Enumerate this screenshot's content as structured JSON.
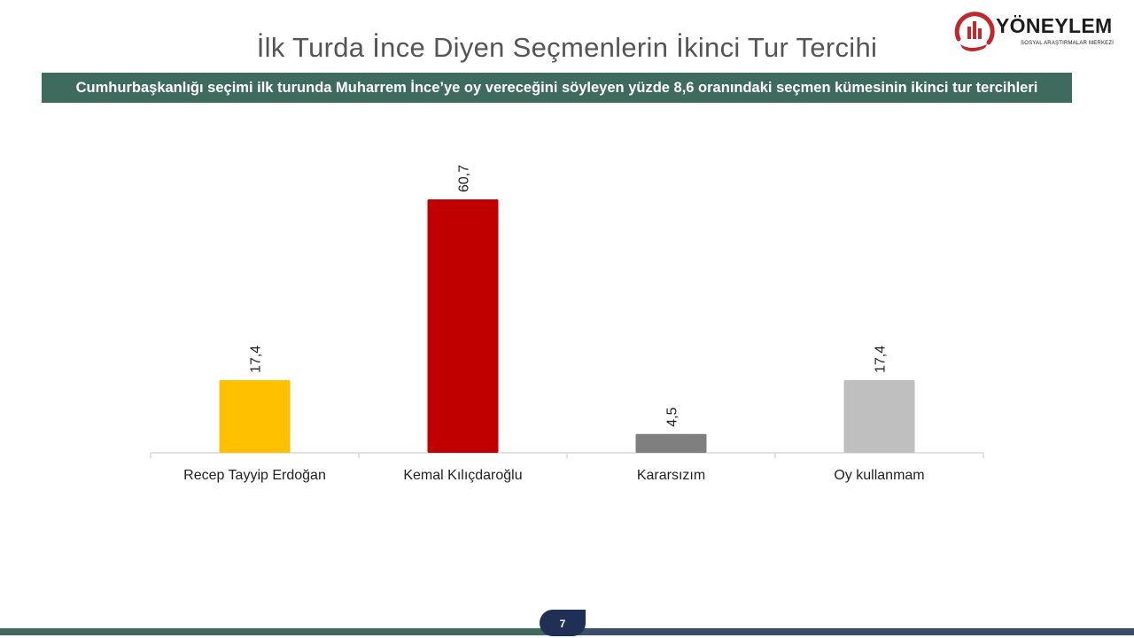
{
  "header": {
    "title": "İlk Turda İnce Diyen Seçmenlerin İkinci Tur Tercihi",
    "subtitle": "Cumhurbaşkanlığı seçimi ilk turunda Muharrem İnce’ye oy vereceğini söyleyen yüzde 8,6 oranındaki seçmen kümesinin ikinci tur tercihleri"
  },
  "logo": {
    "name": "YÖNEYLEM",
    "tagline": "SOSYAL ARAŞTIRMALAR MERKEZİ",
    "accent_color": "#c0282d"
  },
  "footer": {
    "page_number": "7"
  },
  "chart_data": {
    "type": "bar",
    "categories": [
      "Recep Tayyip Erdoğan",
      "Kemal Kılıçdaroğlu",
      "Kararsızım",
      "Oy kullanmam"
    ],
    "values": [
      17.4,
      60.7,
      4.5,
      17.4
    ],
    "value_labels": [
      "17,4",
      "60,7",
      "4,5",
      "17,4"
    ],
    "colors": [
      "#ffc000",
      "#c00000",
      "#7f7f7f",
      "#bfbfbf"
    ],
    "ylim": [
      0,
      70
    ],
    "grid": false,
    "legend": "none"
  }
}
